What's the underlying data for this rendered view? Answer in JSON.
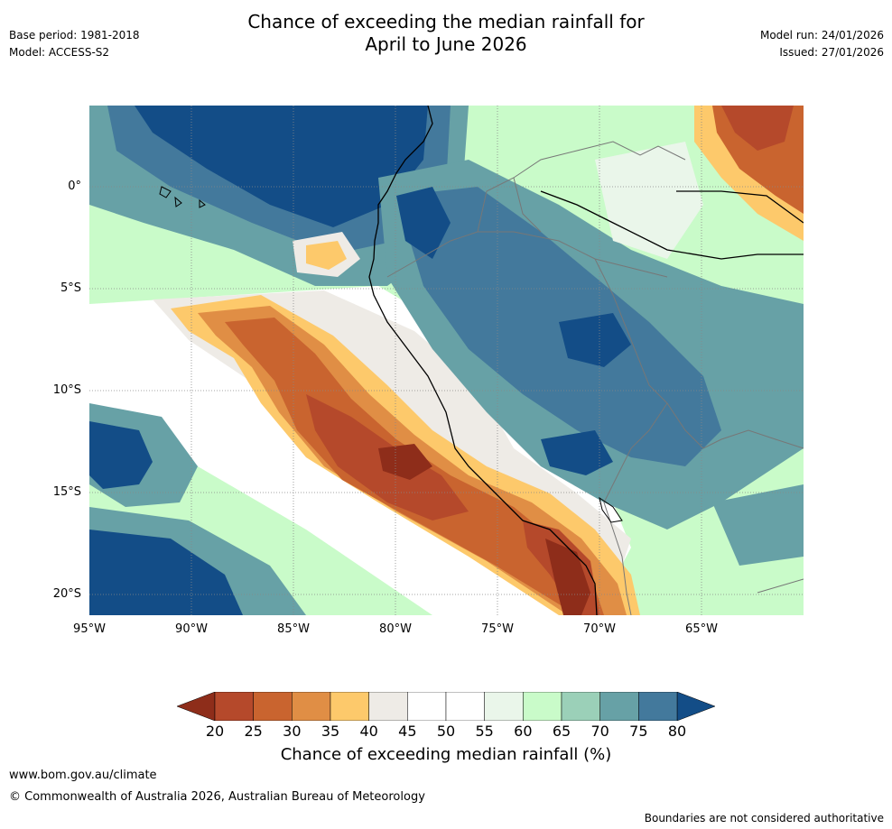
{
  "header": {
    "title_line1": "Chance of exceeding the median rainfall for",
    "title_line2": "April to June 2026",
    "base_period": "Base period: 1981-2018",
    "model": "Model: ACCESS-S2",
    "model_run": "Model run: 24/01/2026",
    "issued": "Issued: 27/01/2026"
  },
  "map": {
    "lat_ticks": [
      "0°",
      "5°S",
      "10°S",
      "15°S",
      "20°S"
    ],
    "lon_ticks": [
      "95°W",
      "90°W",
      "85°W",
      "80°W",
      "75°W",
      "70°W",
      "65°W"
    ],
    "colors": {
      "c_lt20": "#8e2d1a",
      "c_20_25": "#b5492b",
      "c_25_30": "#c9642f",
      "c_30_35": "#e08e45",
      "c_35_40": "#fdc96b",
      "c_40_45": "#eeebe6",
      "c_45_55": "#ffffff",
      "c_55_60": "#eaf6ea",
      "c_60_65": "#c9fbc9",
      "c_65_70": "#9bd0b8",
      "c_70_75": "#67a1a6",
      "c_75_80": "#43799c",
      "c_gt80": "#134d87",
      "coast": "#000000",
      "border": "#777777",
      "grid": "#888888"
    }
  },
  "legend": {
    "ticks": [
      "20",
      "25",
      "30",
      "35",
      "40",
      "45",
      "50",
      "55",
      "60",
      "65",
      "70",
      "75",
      "80"
    ],
    "label": "Chance of exceeding median rainfall (%)",
    "colors": [
      "#b5492b",
      "#c9642f",
      "#e08e45",
      "#fdc96b",
      "#eeebe6",
      "#ffffff",
      "#ffffff",
      "#eaf6ea",
      "#c9fbc9",
      "#9bd0b8",
      "#67a1a6",
      "#43799c"
    ],
    "low_color": "#8e2d1a",
    "high_color": "#134d87"
  },
  "footer": {
    "website": "www.bom.gov.au/climate",
    "copyright": "© Commonwealth of Australia 2026, Australian Bureau of Meteorology",
    "disclaimer": "Boundaries are not considered authoritative"
  }
}
